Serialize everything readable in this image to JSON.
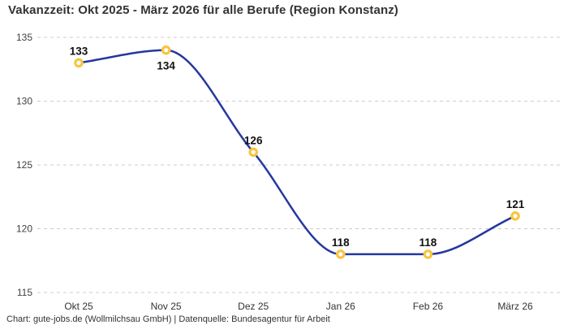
{
  "title": "Vakanzzeit: Okt 2025 - März 2026 für alle Berufe (Region Konstanz)",
  "footer": "Chart: gute-jobs.de (Wollmilchsau GmbH) | Datenquelle: Bundesagentur für Arbeit",
  "chart_data": {
    "type": "line",
    "title": "Vakanzzeit: Okt 2025 - März 2026 für alle Berufe (Region Konstanz)",
    "categories": [
      "Okt 25",
      "Nov 25",
      "Dez 25",
      "Jan 26",
      "Feb 26",
      "März 26"
    ],
    "series": [
      {
        "name": "Vakanzzeit",
        "values": [
          133,
          134,
          126,
          118,
          118,
          121
        ]
      }
    ],
    "xlabel": "",
    "ylabel": "",
    "ylim": [
      115,
      135
    ],
    "yticks": [
      115,
      120,
      125,
      130,
      135
    ],
    "grid": "horizontal-dashed",
    "legend_position": "none",
    "interpolation": "monotone",
    "value_label_positions": [
      "above",
      "below",
      "above",
      "above",
      "above",
      "above"
    ],
    "colors": {
      "line": "#24389f",
      "marker_ring": "#f9c440",
      "marker_fill": "#ffffff",
      "gridline": "#cccccc",
      "title_text": "#333333",
      "label_text": "#111111"
    }
  }
}
